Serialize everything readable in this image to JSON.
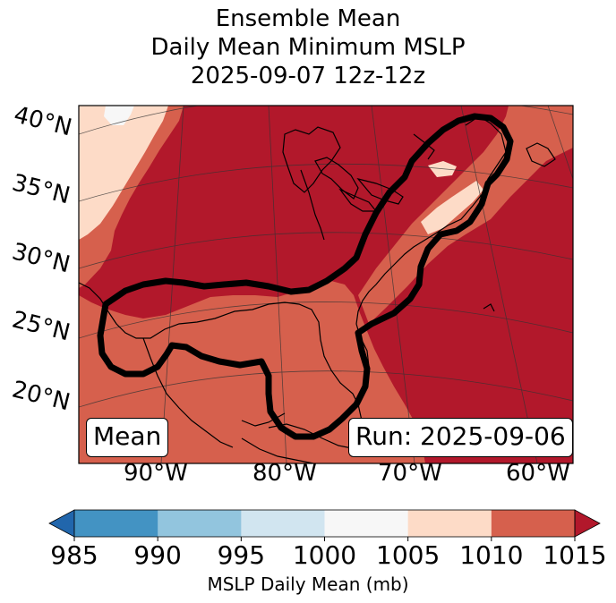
{
  "title": {
    "line1": "Ensemble Mean",
    "line2": "Daily Mean Minimum MSLP",
    "line3": "2025-09-07 12z-12z"
  },
  "latitude_labels": [
    "40°N",
    "35°N",
    "30°N",
    "25°N",
    "20°N"
  ],
  "longitude_labels": [
    "90°W",
    "80°W",
    "70°W",
    "60°W"
  ],
  "mean_box": "Mean",
  "run_box": "Run: 2025-09-06",
  "colorbar": {
    "label": "MSLP Daily Mean (mb)",
    "ticks": [
      "985",
      "990",
      "995",
      "1000",
      "1005",
      "1010",
      "1015"
    ],
    "colors": [
      "#2166ac",
      "#4393c3",
      "#92c5de",
      "#d1e5f0",
      "#f7f7f7",
      "#fddbc7",
      "#d6604d",
      "#b2182b"
    ]
  },
  "map_colors": {
    "mslp_1015_plus": "#b2182b",
    "mslp_1010_1015": "#d6604d",
    "mslp_1005_1010": "#fddbc7",
    "mslp_1000_1005": "#f7f7f7",
    "contour": "#000000"
  }
}
